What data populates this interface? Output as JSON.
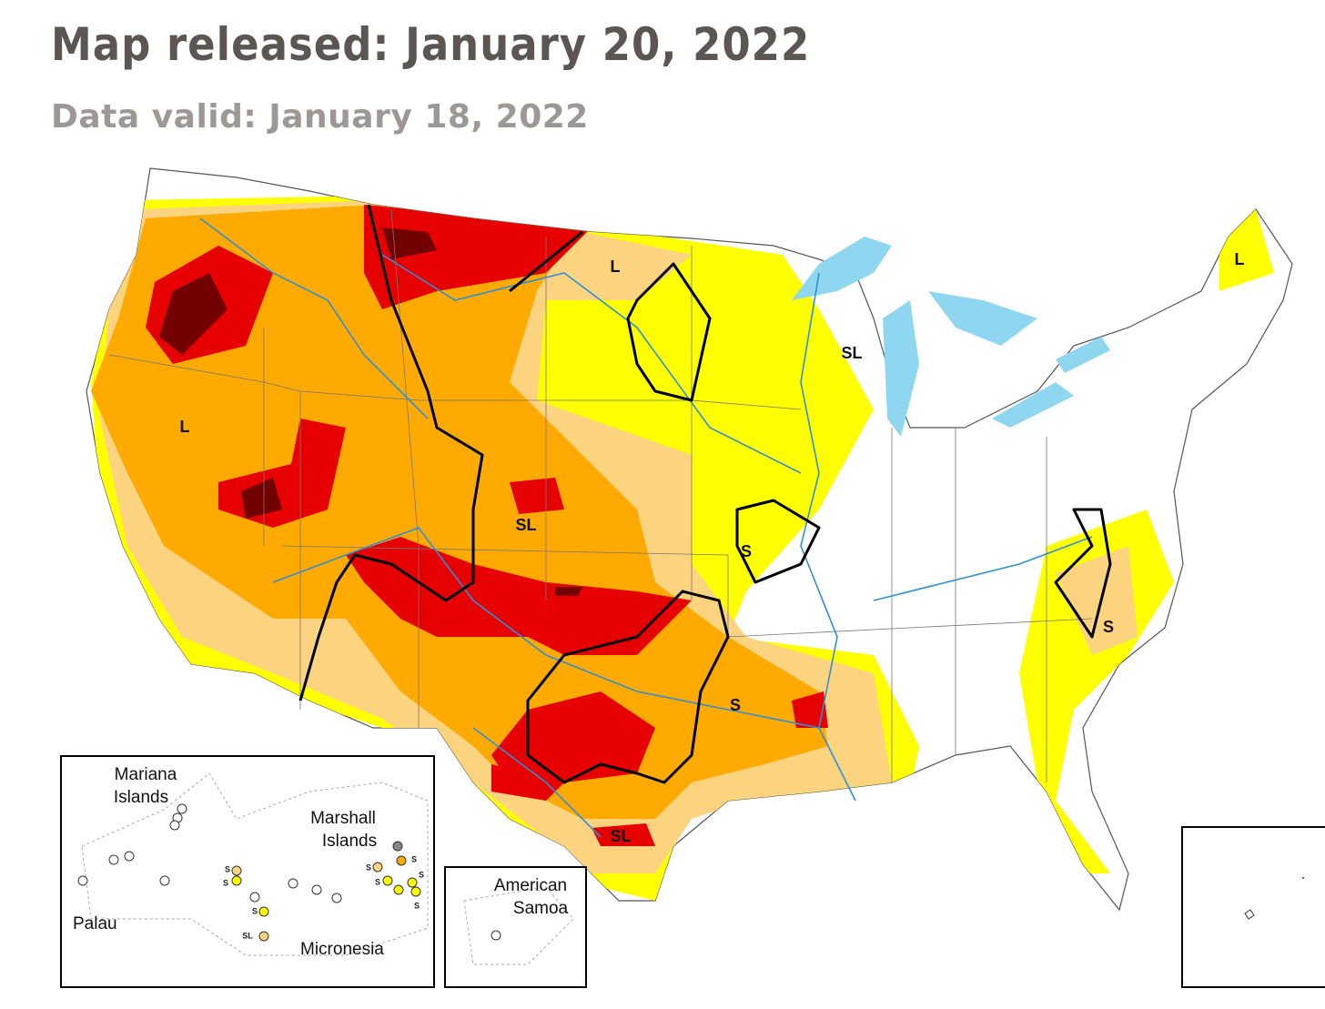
{
  "header": {
    "title": "Map released: January 20, 2022",
    "subtitle": "Data valid: January 18, 2022"
  },
  "map": {
    "impact_labels": [
      "L",
      "L",
      "SL",
      "L",
      "SL",
      "S",
      "S",
      "S",
      "SL"
    ]
  },
  "insets": {
    "pacific": {
      "labels": {
        "mariana": [
          "Mariana",
          "Islands"
        ],
        "marshall": [
          "Marshall",
          "Islands"
        ],
        "palau": "Palau",
        "micronesia": "Micronesia"
      },
      "dot_labels": [
        "S",
        "S",
        "SL",
        "S",
        "S",
        "S",
        "S",
        "S",
        "S"
      ]
    },
    "samoa": {
      "label": [
        "American",
        "Samoa"
      ]
    }
  }
}
